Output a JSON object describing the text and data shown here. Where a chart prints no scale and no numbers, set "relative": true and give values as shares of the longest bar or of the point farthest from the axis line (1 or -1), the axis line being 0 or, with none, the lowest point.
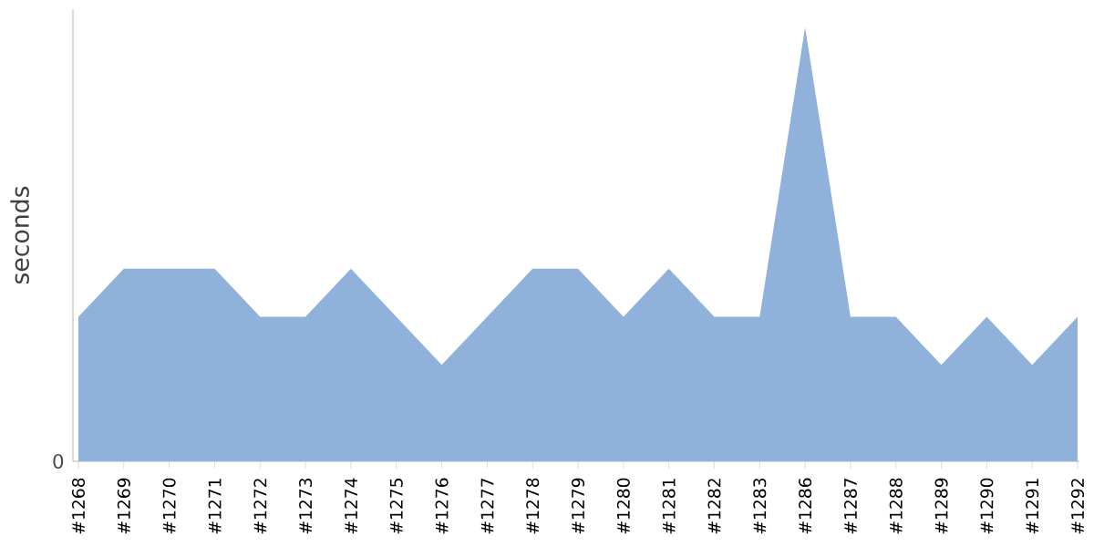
{
  "chart_data": {
    "type": "area",
    "ylabel": "seconds",
    "relative": true,
    "color": "#8fb1da",
    "annotations": [
      "0"
    ],
    "categories": [
      "#1268",
      "#1269",
      "#1270",
      "#1271",
      "#1272",
      "#1273",
      "#1274",
      "#1275",
      "#1276",
      "#1277",
      "#1278",
      "#1279",
      "#1280",
      "#1281",
      "#1282",
      "#1283",
      "#1286",
      "#1287",
      "#1288",
      "#1289",
      "#1290",
      "#1291",
      "#1292"
    ],
    "values": [
      0.333,
      0.444,
      0.444,
      0.444,
      0.333,
      0.333,
      0.444,
      0.333,
      0.222,
      0.333,
      0.444,
      0.444,
      0.333,
      0.444,
      0.333,
      0.333,
      1,
      0.333,
      0.333,
      0.222,
      0.333,
      0.222,
      0.333
    ]
  }
}
